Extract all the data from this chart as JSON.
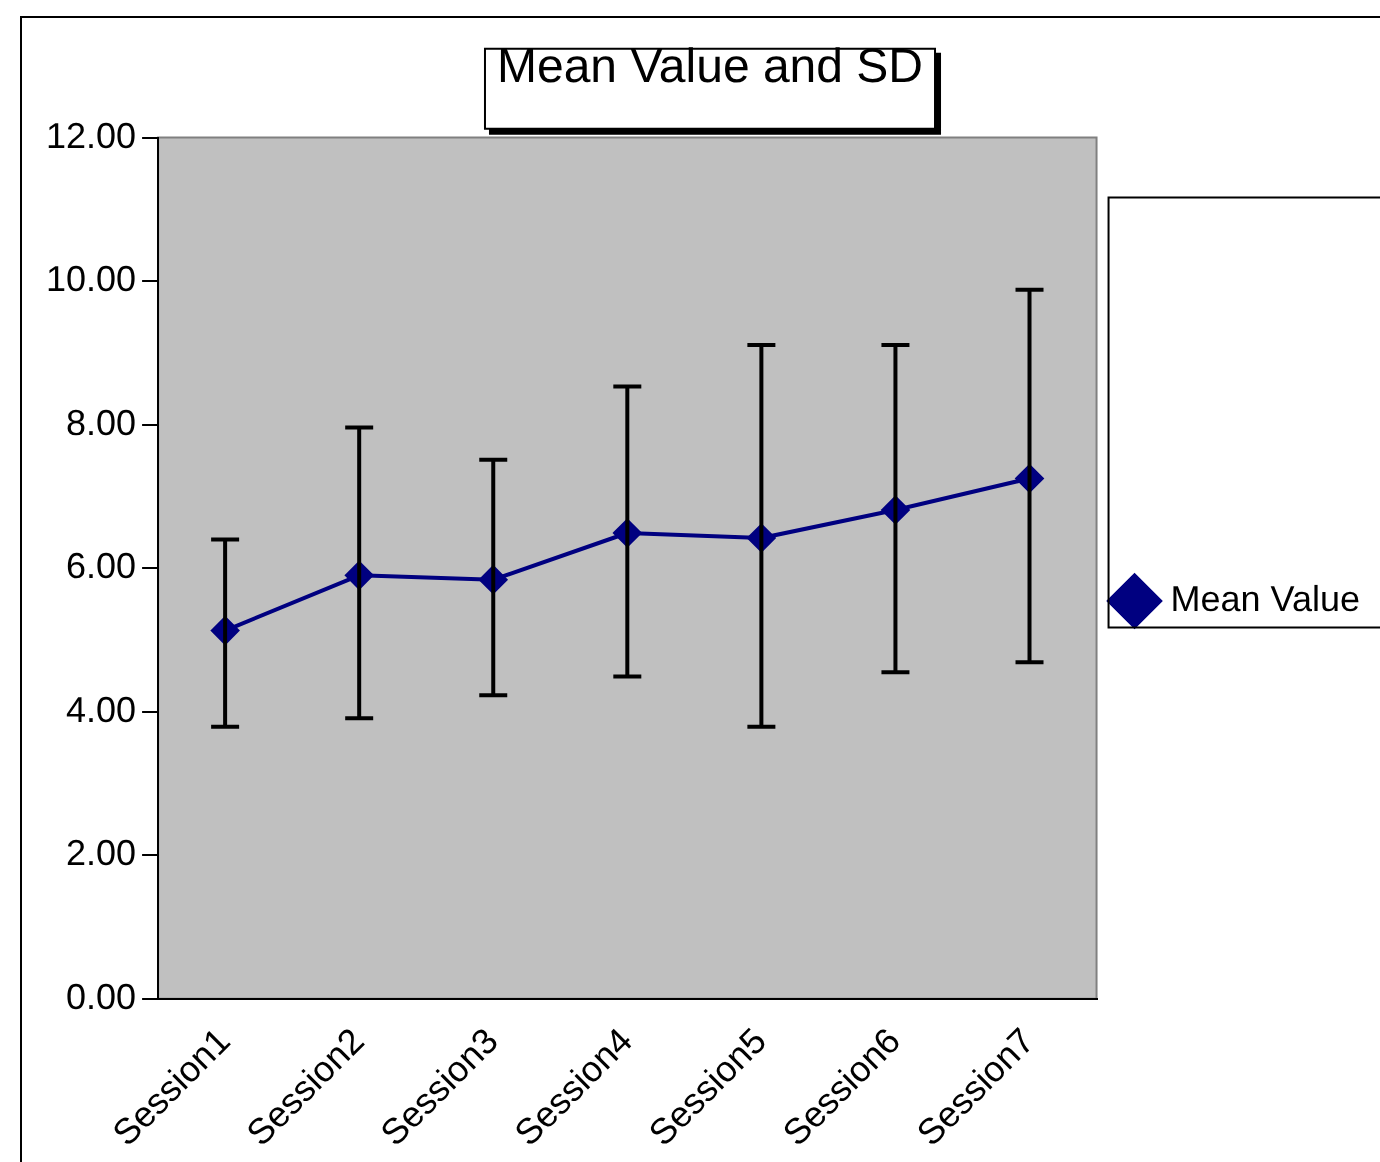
{
  "chart_data": {
    "type": "line",
    "title": "Mean Value and SD",
    "categories": [
      "Session1",
      "Session2",
      "Session3",
      "Session4",
      "Session5",
      "Session6",
      "Session7"
    ],
    "series": [
      {
        "name": "Mean Value",
        "color": "#000080",
        "values": [
          5.13,
          5.9,
          5.84,
          6.49,
          6.42,
          6.81,
          7.25
        ],
        "errors": [
          [
            3.79,
            6.4
          ],
          [
            3.91,
            7.96
          ],
          [
            4.23,
            7.51
          ],
          [
            4.49,
            8.53
          ],
          [
            3.79,
            9.11
          ],
          [
            4.55,
            9.11
          ],
          [
            4.69,
            9.88
          ]
        ]
      }
    ],
    "ylim": [
      0,
      12
    ],
    "yticks": [
      {
        "value": 0,
        "label": "0.00"
      },
      {
        "value": 2,
        "label": "2.00"
      },
      {
        "value": 4,
        "label": "4.00"
      },
      {
        "value": 6,
        "label": "6.00"
      },
      {
        "value": 8,
        "label": "8.00"
      },
      {
        "value": 10,
        "label": "10.00"
      },
      {
        "value": 12,
        "label": "12.00"
      }
    ],
    "grid": false,
    "legend": "right",
    "marker": "diamond",
    "line_style": "solid"
  }
}
